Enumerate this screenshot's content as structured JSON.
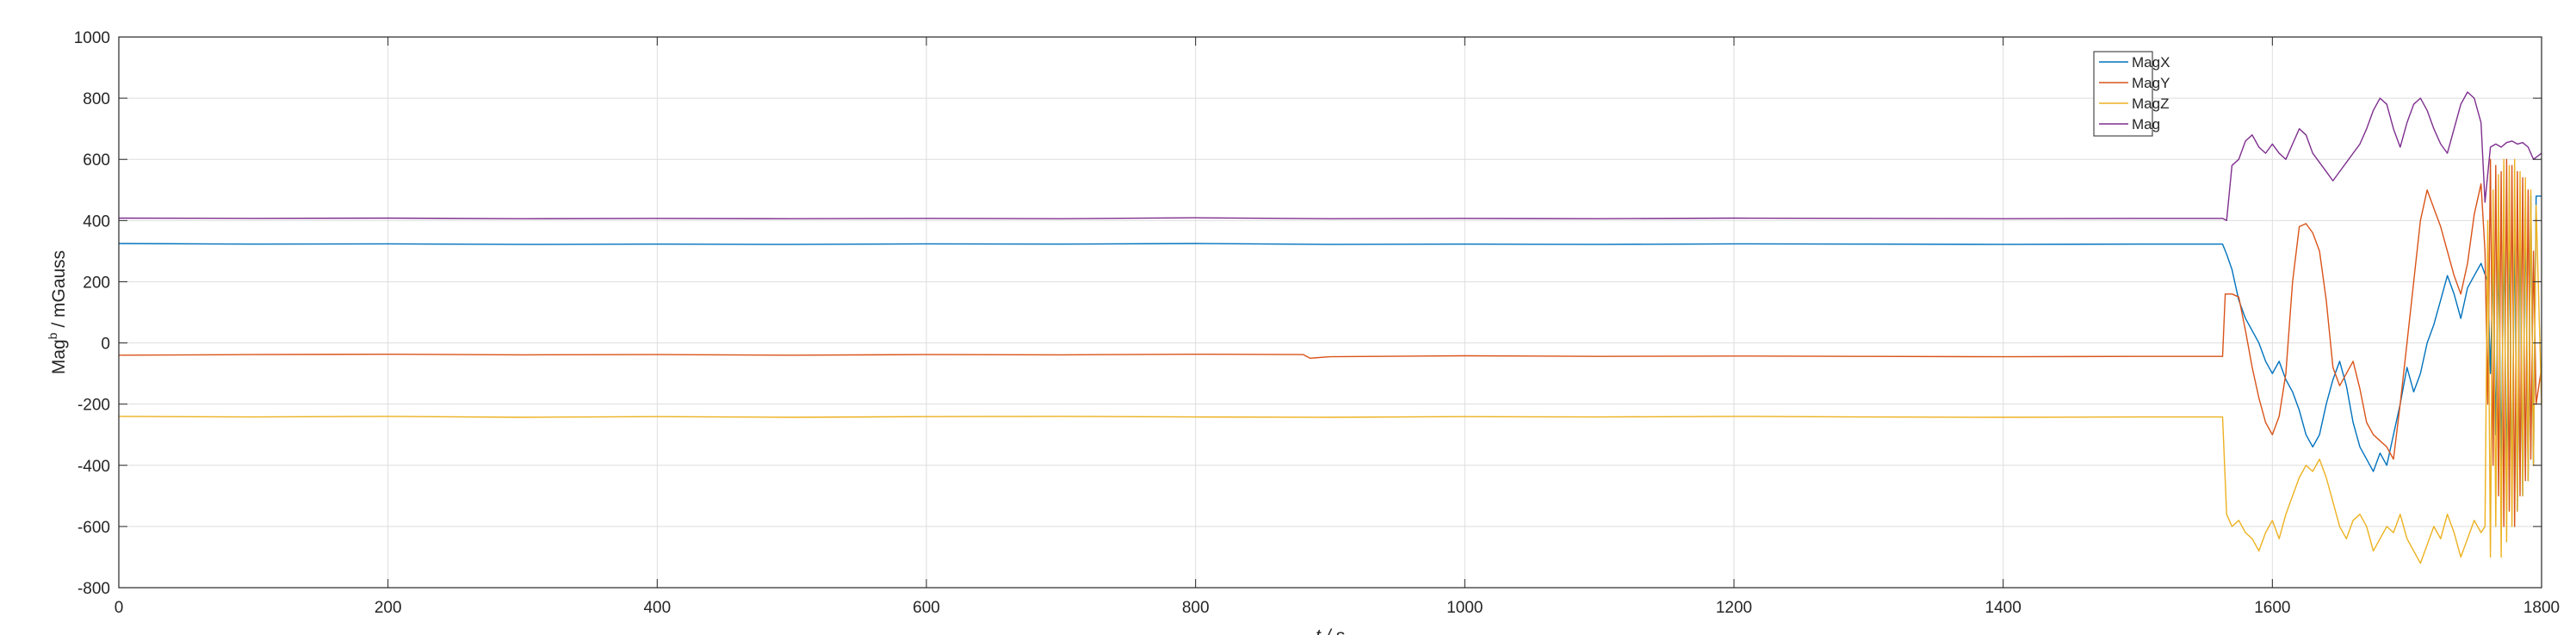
{
  "chart_data": {
    "type": "line",
    "xlabel": "t / s",
    "ylabel_main": "Mag",
    "ylabel_sup": "b",
    "ylabel_rest": " / mGauss",
    "xlim": [
      0,
      1800
    ],
    "ylim": [
      -800,
      1000
    ],
    "xticks": [
      0,
      200,
      400,
      600,
      800,
      1000,
      1200,
      1400,
      1600,
      1800
    ],
    "yticks": [
      -800,
      -600,
      -400,
      -200,
      0,
      200,
      400,
      600,
      800,
      1000
    ],
    "grid": true,
    "legend_position": "top-right",
    "series": [
      {
        "name": "MagX",
        "color": "#0072BD",
        "points": [
          [
            0,
            325
          ],
          [
            100,
            323
          ],
          [
            200,
            324
          ],
          [
            300,
            322
          ],
          [
            400,
            323
          ],
          [
            500,
            322
          ],
          [
            600,
            324
          ],
          [
            700,
            323
          ],
          [
            800,
            325
          ],
          [
            900,
            322
          ],
          [
            1000,
            323
          ],
          [
            1100,
            322
          ],
          [
            1200,
            324
          ],
          [
            1300,
            323
          ],
          [
            1400,
            322
          ],
          [
            1500,
            323
          ],
          [
            1563,
            323
          ],
          [
            1566,
            290
          ],
          [
            1570,
            240
          ],
          [
            1575,
            140
          ],
          [
            1580,
            80
          ],
          [
            1585,
            40
          ],
          [
            1590,
            0
          ],
          [
            1595,
            -60
          ],
          [
            1600,
            -100
          ],
          [
            1605,
            -60
          ],
          [
            1610,
            -120
          ],
          [
            1615,
            -160
          ],
          [
            1620,
            -220
          ],
          [
            1625,
            -300
          ],
          [
            1630,
            -340
          ],
          [
            1635,
            -300
          ],
          [
            1640,
            -200
          ],
          [
            1645,
            -120
          ],
          [
            1650,
            -60
          ],
          [
            1655,
            -140
          ],
          [
            1660,
            -260
          ],
          [
            1665,
            -340
          ],
          [
            1670,
            -380
          ],
          [
            1675,
            -420
          ],
          [
            1680,
            -360
          ],
          [
            1685,
            -400
          ],
          [
            1690,
            -300
          ],
          [
            1695,
            -200
          ],
          [
            1700,
            -80
          ],
          [
            1705,
            -160
          ],
          [
            1710,
            -100
          ],
          [
            1715,
            0
          ],
          [
            1720,
            60
          ],
          [
            1725,
            140
          ],
          [
            1730,
            220
          ],
          [
            1735,
            160
          ],
          [
            1740,
            80
          ],
          [
            1745,
            180
          ],
          [
            1750,
            220
          ],
          [
            1755,
            260
          ],
          [
            1760,
            200
          ],
          [
            1762,
            -100
          ],
          [
            1764,
            250
          ],
          [
            1766,
            -300
          ],
          [
            1768,
            300
          ],
          [
            1770,
            -400
          ],
          [
            1772,
            350
          ],
          [
            1774,
            -450
          ],
          [
            1776,
            380
          ],
          [
            1778,
            -500
          ],
          [
            1780,
            400
          ],
          [
            1782,
            -550
          ],
          [
            1784,
            420
          ],
          [
            1786,
            -500
          ],
          [
            1788,
            450
          ],
          [
            1790,
            -450
          ],
          [
            1792,
            480
          ],
          [
            1794,
            -400
          ],
          [
            1796,
            480
          ],
          [
            1800,
            480
          ]
        ]
      },
      {
        "name": "MagY",
        "color": "#D95319",
        "points": [
          [
            0,
            -40
          ],
          [
            100,
            -38
          ],
          [
            200,
            -37
          ],
          [
            300,
            -39
          ],
          [
            400,
            -38
          ],
          [
            500,
            -40
          ],
          [
            600,
            -38
          ],
          [
            700,
            -39
          ],
          [
            800,
            -37
          ],
          [
            880,
            -38
          ],
          [
            885,
            -50
          ],
          [
            900,
            -45
          ],
          [
            1000,
            -42
          ],
          [
            1100,
            -44
          ],
          [
            1200,
            -43
          ],
          [
            1300,
            -44
          ],
          [
            1400,
            -45
          ],
          [
            1500,
            -44
          ],
          [
            1563,
            -44
          ],
          [
            1565,
            160
          ],
          [
            1570,
            160
          ],
          [
            1575,
            150
          ],
          [
            1580,
            40
          ],
          [
            1585,
            -80
          ],
          [
            1590,
            -180
          ],
          [
            1595,
            -260
          ],
          [
            1600,
            -300
          ],
          [
            1605,
            -240
          ],
          [
            1610,
            -100
          ],
          [
            1615,
            200
          ],
          [
            1620,
            380
          ],
          [
            1625,
            390
          ],
          [
            1630,
            360
          ],
          [
            1635,
            300
          ],
          [
            1640,
            140
          ],
          [
            1645,
            -80
          ],
          [
            1650,
            -140
          ],
          [
            1655,
            -100
          ],
          [
            1660,
            -60
          ],
          [
            1665,
            -150
          ],
          [
            1670,
            -260
          ],
          [
            1675,
            -300
          ],
          [
            1680,
            -320
          ],
          [
            1685,
            -340
          ],
          [
            1690,
            -380
          ],
          [
            1695,
            -200
          ],
          [
            1700,
            0
          ],
          [
            1705,
            200
          ],
          [
            1710,
            400
          ],
          [
            1715,
            500
          ],
          [
            1720,
            440
          ],
          [
            1725,
            380
          ],
          [
            1730,
            300
          ],
          [
            1735,
            220
          ],
          [
            1740,
            160
          ],
          [
            1745,
            260
          ],
          [
            1750,
            420
          ],
          [
            1755,
            520
          ],
          [
            1758,
            300
          ],
          [
            1760,
            -200
          ],
          [
            1762,
            600
          ],
          [
            1764,
            -400
          ],
          [
            1766,
            580
          ],
          [
            1768,
            -500
          ],
          [
            1770,
            560
          ],
          [
            1772,
            -600
          ],
          [
            1774,
            600
          ],
          [
            1776,
            -550
          ],
          [
            1778,
            580
          ],
          [
            1780,
            -600
          ],
          [
            1782,
            560
          ],
          [
            1784,
            -500
          ],
          [
            1786,
            540
          ],
          [
            1788,
            -450
          ],
          [
            1790,
            500
          ],
          [
            1792,
            -380
          ],
          [
            1794,
            300
          ],
          [
            1796,
            -200
          ],
          [
            1800,
            -80
          ]
        ]
      },
      {
        "name": "MagZ",
        "color": "#EDB120",
        "points": [
          [
            0,
            -240
          ],
          [
            100,
            -242
          ],
          [
            200,
            -240
          ],
          [
            300,
            -243
          ],
          [
            400,
            -241
          ],
          [
            500,
            -243
          ],
          [
            600,
            -241
          ],
          [
            700,
            -240
          ],
          [
            800,
            -242
          ],
          [
            900,
            -243
          ],
          [
            1000,
            -241
          ],
          [
            1100,
            -242
          ],
          [
            1200,
            -240
          ],
          [
            1300,
            -242
          ],
          [
            1400,
            -243
          ],
          [
            1500,
            -242
          ],
          [
            1563,
            -242
          ],
          [
            1566,
            -560
          ],
          [
            1570,
            -600
          ],
          [
            1575,
            -580
          ],
          [
            1580,
            -620
          ],
          [
            1585,
            -640
          ],
          [
            1590,
            -680
          ],
          [
            1595,
            -620
          ],
          [
            1600,
            -580
          ],
          [
            1605,
            -640
          ],
          [
            1610,
            -560
          ],
          [
            1615,
            -500
          ],
          [
            1620,
            -440
          ],
          [
            1625,
            -400
          ],
          [
            1630,
            -420
          ],
          [
            1635,
            -380
          ],
          [
            1640,
            -440
          ],
          [
            1645,
            -520
          ],
          [
            1650,
            -600
          ],
          [
            1655,
            -640
          ],
          [
            1660,
            -580
          ],
          [
            1665,
            -560
          ],
          [
            1670,
            -600
          ],
          [
            1675,
            -680
          ],
          [
            1680,
            -640
          ],
          [
            1685,
            -600
          ],
          [
            1690,
            -620
          ],
          [
            1695,
            -560
          ],
          [
            1700,
            -640
          ],
          [
            1705,
            -680
          ],
          [
            1710,
            -720
          ],
          [
            1715,
            -660
          ],
          [
            1720,
            -600
          ],
          [
            1725,
            -640
          ],
          [
            1730,
            -560
          ],
          [
            1735,
            -620
          ],
          [
            1740,
            -700
          ],
          [
            1745,
            -640
          ],
          [
            1750,
            -580
          ],
          [
            1755,
            -620
          ],
          [
            1758,
            -600
          ],
          [
            1760,
            400
          ],
          [
            1762,
            -700
          ],
          [
            1764,
            500
          ],
          [
            1766,
            -600
          ],
          [
            1768,
            550
          ],
          [
            1770,
            -700
          ],
          [
            1772,
            600
          ],
          [
            1774,
            -650
          ],
          [
            1776,
            580
          ],
          [
            1778,
            -600
          ],
          [
            1780,
            600
          ],
          [
            1782,
            -550
          ],
          [
            1784,
            560
          ],
          [
            1786,
            -500
          ],
          [
            1788,
            540
          ],
          [
            1790,
            -450
          ],
          [
            1792,
            500
          ],
          [
            1794,
            -400
          ],
          [
            1796,
            450
          ],
          [
            1800,
            -200
          ]
        ]
      },
      {
        "name": "Mag",
        "color": "#7E2F8E",
        "points": [
          [
            0,
            408
          ],
          [
            100,
            407
          ],
          [
            200,
            408
          ],
          [
            300,
            406
          ],
          [
            400,
            407
          ],
          [
            500,
            406
          ],
          [
            600,
            407
          ],
          [
            700,
            406
          ],
          [
            800,
            409
          ],
          [
            900,
            406
          ],
          [
            1000,
            407
          ],
          [
            1100,
            406
          ],
          [
            1200,
            408
          ],
          [
            1300,
            407
          ],
          [
            1400,
            406
          ],
          [
            1500,
            407
          ],
          [
            1563,
            407
          ],
          [
            1566,
            400
          ],
          [
            1570,
            580
          ],
          [
            1575,
            600
          ],
          [
            1580,
            660
          ],
          [
            1585,
            680
          ],
          [
            1590,
            640
          ],
          [
            1595,
            620
          ],
          [
            1600,
            650
          ],
          [
            1605,
            620
          ],
          [
            1610,
            600
          ],
          [
            1615,
            650
          ],
          [
            1620,
            700
          ],
          [
            1625,
            680
          ],
          [
            1630,
            620
          ],
          [
            1635,
            590
          ],
          [
            1640,
            560
          ],
          [
            1645,
            530
          ],
          [
            1650,
            560
          ],
          [
            1655,
            590
          ],
          [
            1660,
            620
          ],
          [
            1665,
            650
          ],
          [
            1670,
            700
          ],
          [
            1675,
            760
          ],
          [
            1680,
            800
          ],
          [
            1685,
            780
          ],
          [
            1690,
            700
          ],
          [
            1695,
            640
          ],
          [
            1700,
            720
          ],
          [
            1705,
            780
          ],
          [
            1710,
            800
          ],
          [
            1715,
            760
          ],
          [
            1720,
            700
          ],
          [
            1725,
            650
          ],
          [
            1730,
            620
          ],
          [
            1735,
            700
          ],
          [
            1740,
            780
          ],
          [
            1745,
            820
          ],
          [
            1750,
            800
          ],
          [
            1755,
            720
          ],
          [
            1758,
            460
          ],
          [
            1762,
            640
          ],
          [
            1766,
            650
          ],
          [
            1770,
            640
          ],
          [
            1774,
            655
          ],
          [
            1778,
            660
          ],
          [
            1782,
            650
          ],
          [
            1786,
            655
          ],
          [
            1790,
            640
          ],
          [
            1794,
            600
          ],
          [
            1800,
            620
          ]
        ]
      }
    ]
  }
}
